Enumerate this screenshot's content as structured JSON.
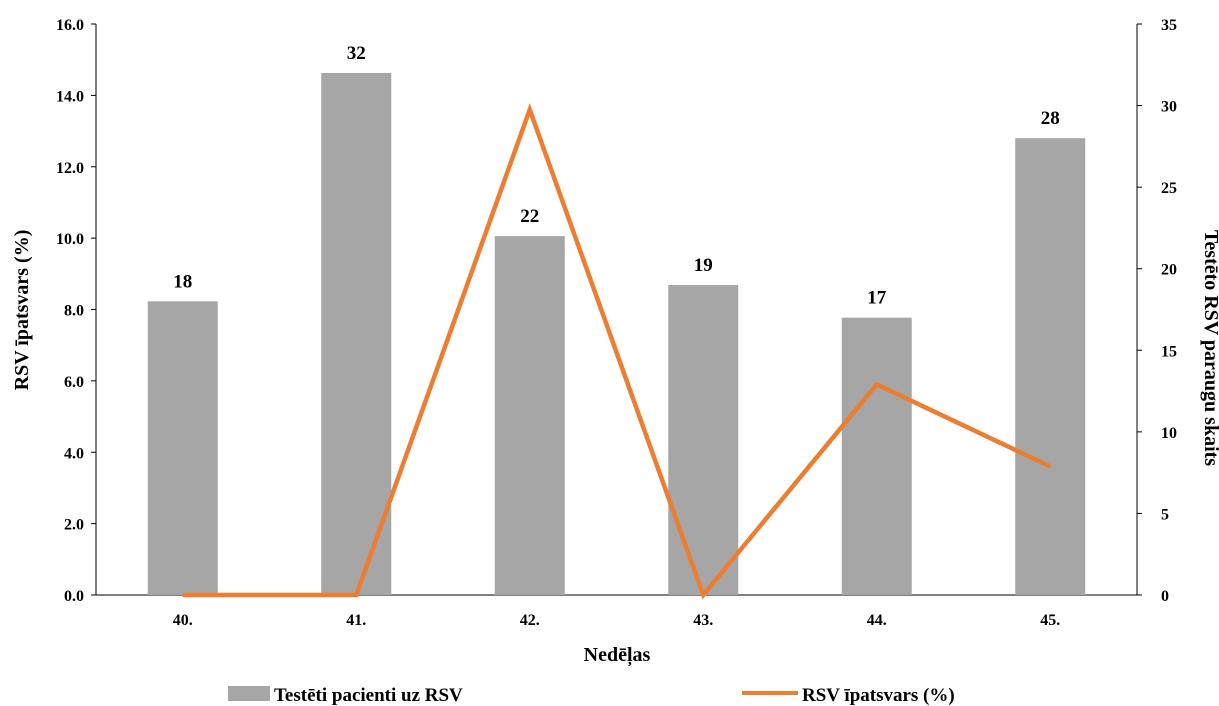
{
  "chart_data": {
    "type": "bar+line",
    "categories": [
      "40.",
      "41.",
      "42.",
      "43.",
      "44.",
      "45."
    ],
    "xlabel": "Nedēļas",
    "ylabel_left": "RSV īpatsvars (%)",
    "ylabel_right": "Testēto RSV paraugu skaits",
    "ylim_left": [
      0,
      16
    ],
    "yticks_left": [
      "0.0",
      "2.0",
      "4.0",
      "6.0",
      "8.0",
      "10.0",
      "12.0",
      "14.0",
      "16.0"
    ],
    "ylim_right": [
      0,
      35
    ],
    "yticks_right": [
      "0",
      "5",
      "10",
      "15",
      "20",
      "25",
      "30",
      "35"
    ],
    "grid": false,
    "legend_position": "bottom",
    "series": [
      {
        "name": "Testēti pacienti uz RSV",
        "kind": "bar",
        "axis": "right",
        "color": "#a6a6a6",
        "values": [
          18,
          32,
          22,
          19,
          17,
          28
        ],
        "labels": [
          "18",
          "32",
          "22",
          "19",
          "17",
          ""
        ]
      },
      {
        "name": "RSV īpatsvars (%)",
        "kind": "line",
        "axis": "left",
        "color": "#ed7d31",
        "values": [
          0.0,
          0.0,
          13.6,
          0.0,
          5.9,
          3.6
        ]
      }
    ],
    "extra_labels": [
      "28"
    ]
  }
}
